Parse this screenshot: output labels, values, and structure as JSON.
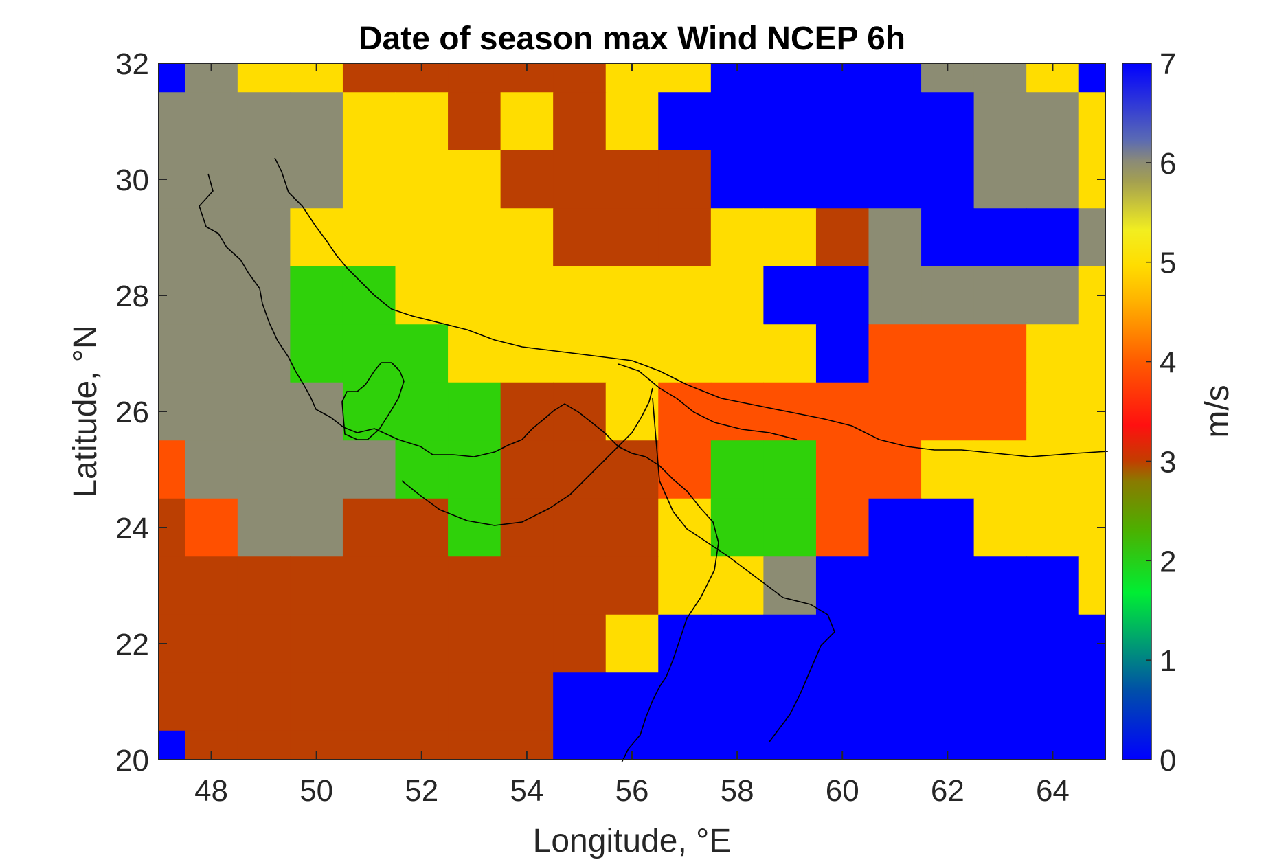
{
  "chart_data": {
    "type": "heatmap",
    "title": "Date of season max Wind NCEP 6h",
    "xlabel": "Longitude, °E",
    "ylabel": "Latitude, °N",
    "xlim": [
      47,
      65
    ],
    "ylim": [
      20,
      32
    ],
    "x_ticks": [
      "48",
      "50",
      "52",
      "54",
      "56",
      "58",
      "60",
      "62",
      "64"
    ],
    "x_tick_values": [
      48,
      50,
      52,
      54,
      56,
      58,
      60,
      62,
      64
    ],
    "y_ticks": [
      "20",
      "22",
      "24",
      "26",
      "28",
      "30",
      "32"
    ],
    "y_tick_values": [
      20,
      22,
      24,
      26,
      28,
      30,
      32
    ],
    "colorbar": {
      "label": "m/s",
      "range": [
        0,
        7
      ],
      "ticks": [
        "0",
        "1",
        "2",
        "3",
        "4",
        "5",
        "6",
        "7"
      ],
      "tick_values": [
        0,
        1,
        2,
        3,
        4,
        5,
        6,
        7
      ]
    },
    "grid_x_edges_note": "cells centered on whole degrees 47..65, 1 deg lon x 1 deg lat; latitude rows from 32 (top) down to 20",
    "cell_lons": [
      47,
      48,
      49,
      50,
      51,
      52,
      53,
      54,
      55,
      56,
      57,
      58,
      59,
      60,
      61,
      62,
      63,
      64,
      65
    ],
    "cell_lats": [
      32,
      31,
      30,
      29,
      28,
      27,
      26,
      25,
      24,
      23,
      22,
      21,
      20
    ],
    "values": [
      [
        7,
        6,
        5,
        5,
        3,
        3,
        3,
        3,
        3,
        5,
        5,
        7,
        7,
        7,
        7,
        6,
        6,
        5,
        7
      ],
      [
        6,
        6,
        6,
        6,
        5,
        5,
        3,
        5,
        3,
        5,
        7,
        7,
        7,
        7,
        7,
        7,
        6,
        6,
        5
      ],
      [
        6,
        6,
        6,
        6,
        5,
        5,
        5,
        3,
        3,
        3,
        3,
        7,
        7,
        7,
        7,
        7,
        6,
        6,
        5
      ],
      [
        6,
        6,
        6,
        5,
        5,
        5,
        5,
        5,
        3,
        3,
        3,
        5,
        5,
        3,
        6,
        7,
        7,
        7,
        6
      ],
      [
        6,
        6,
        6,
        2,
        2,
        5,
        5,
        5,
        5,
        5,
        5,
        5,
        7,
        7,
        6,
        6,
        6,
        6,
        5
      ],
      [
        6,
        6,
        6,
        2,
        2,
        2,
        5,
        5,
        5,
        5,
        5,
        5,
        5,
        7,
        4,
        4,
        4,
        5,
        5
      ],
      [
        6,
        6,
        6,
        6,
        2,
        2,
        2,
        3,
        3,
        5,
        4,
        4,
        4,
        4,
        4,
        4,
        4,
        5,
        5
      ],
      [
        4,
        6,
        6,
        6,
        6,
        2,
        2,
        3,
        3,
        3,
        4,
        2,
        2,
        4,
        4,
        5,
        5,
        5,
        5
      ],
      [
        3,
        4,
        6,
        6,
        3,
        3,
        2,
        3,
        3,
        3,
        5,
        2,
        2,
        4,
        7,
        7,
        5,
        5,
        5
      ],
      [
        3,
        3,
        3,
        3,
        3,
        3,
        3,
        3,
        3,
        3,
        5,
        5,
        6,
        7,
        7,
        7,
        7,
        7,
        5
      ],
      [
        3,
        3,
        3,
        3,
        3,
        3,
        3,
        3,
        3,
        5,
        7,
        7,
        7,
        7,
        7,
        7,
        7,
        7,
        7
      ],
      [
        3,
        3,
        3,
        3,
        3,
        3,
        3,
        3,
        7,
        7,
        7,
        7,
        7,
        7,
        7,
        7,
        7,
        7,
        7
      ],
      [
        7,
        3,
        3,
        3,
        3,
        3,
        3,
        3,
        7,
        7,
        7,
        7,
        7,
        7,
        7,
        7,
        7,
        7,
        7
      ]
    ]
  }
}
